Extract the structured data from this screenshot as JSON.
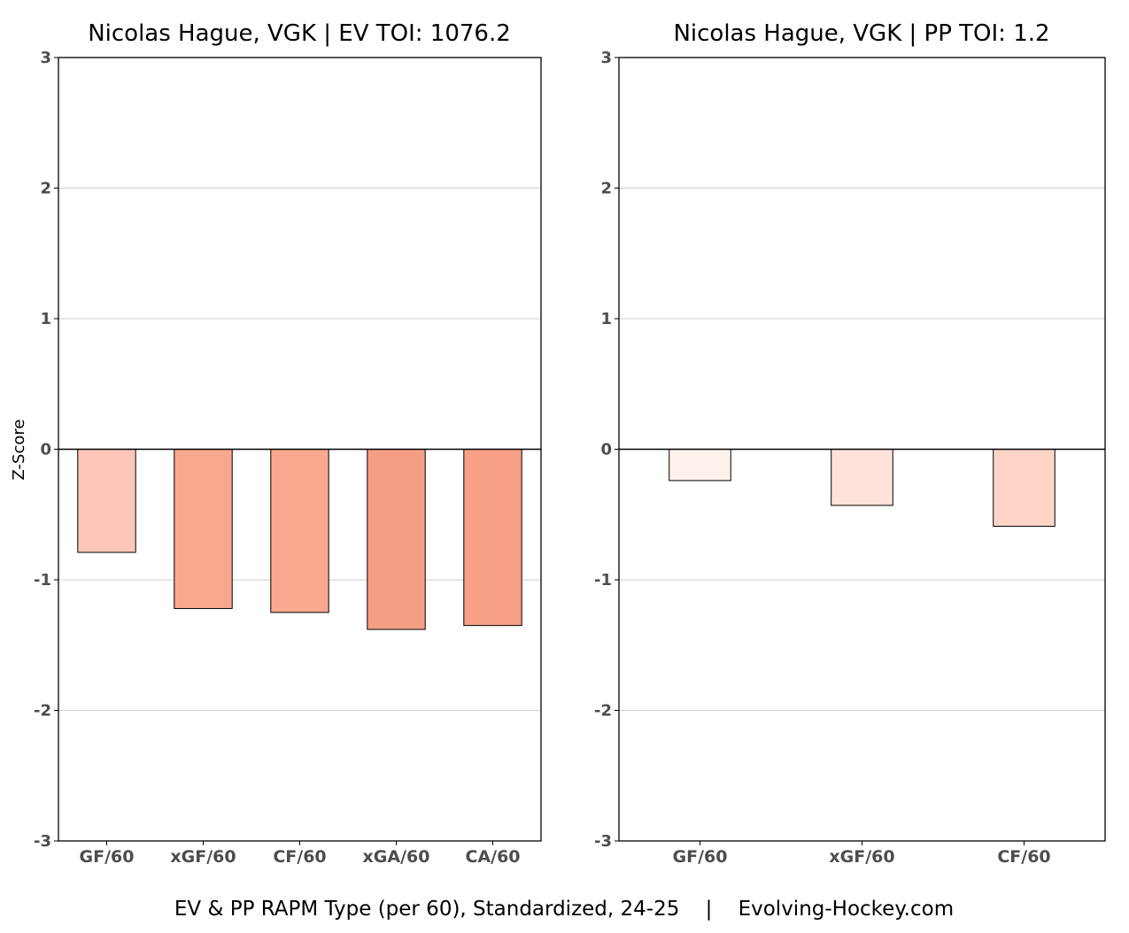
{
  "caption": "EV & PP RAPM Type (per 60), Standardized, 24-25    |    Evolving-Hockey.com",
  "ylabel": "Z-Score",
  "chart_data": [
    {
      "type": "bar",
      "title": "Nicolas Hague, VGK  |  EV TOI: 1076.2",
      "categories": [
        "GF/60",
        "xGF/60",
        "CF/60",
        "xGA/60",
        "CA/60"
      ],
      "values": [
        -0.79,
        -1.22,
        -1.25,
        -1.38,
        -1.35
      ],
      "colors": [
        "#fdc6b8",
        "#f9a890",
        "#f9a88f",
        "#f69e84",
        "#f7a086"
      ],
      "ylabel": "Z-Score",
      "ylim": [
        -3,
        3
      ],
      "yticks": [
        -3,
        -2,
        -1,
        0,
        1,
        2,
        3
      ],
      "grid": true
    },
    {
      "type": "bar",
      "title": "Nicolas Hague, VGK  |  PP TOI: 1.2",
      "categories": [
        "GF/60",
        "xGF/60",
        "CF/60"
      ],
      "values": [
        -0.24,
        -0.43,
        -0.59
      ],
      "colors": [
        "#fff1ec",
        "#ffe3da",
        "#fed4c7"
      ],
      "ylabel": "",
      "ylim": [
        -3,
        3
      ],
      "yticks": [
        -3,
        -2,
        -1,
        0,
        1,
        2,
        3
      ],
      "grid": true
    }
  ]
}
